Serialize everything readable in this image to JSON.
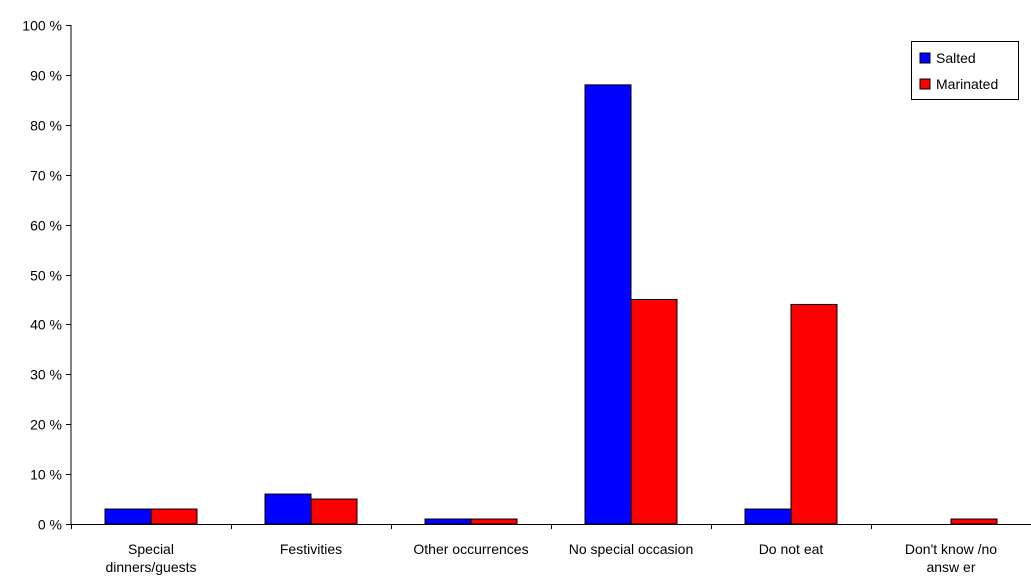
{
  "chart_data": {
    "type": "bar",
    "categories": [
      [
        "Special",
        "dinners/guests"
      ],
      [
        "Festivities"
      ],
      [
        "Other occurrences"
      ],
      [
        "No special occasion"
      ],
      [
        "Do not eat"
      ],
      [
        "Don't know /no",
        "answ er"
      ]
    ],
    "series": [
      {
        "name": "Salted",
        "color": "#0000ff",
        "values": [
          3,
          6,
          1,
          88,
          3,
          0
        ]
      },
      {
        "name": "Marinated",
        "color": "#ff0000",
        "values": [
          3,
          5,
          1,
          45,
          44,
          1
        ]
      }
    ],
    "ylim": [
      0,
      100
    ],
    "yticks": [
      0,
      10,
      20,
      30,
      40,
      50,
      60,
      70,
      80,
      90,
      100
    ],
    "ytick_labels": [
      "0 %",
      "10 %",
      "20 %",
      "30 %",
      "40 %",
      "50 %",
      "60 %",
      "70 %",
      "80 %",
      "90 %",
      "100 %"
    ],
    "grid": false,
    "legend": "top-right"
  }
}
